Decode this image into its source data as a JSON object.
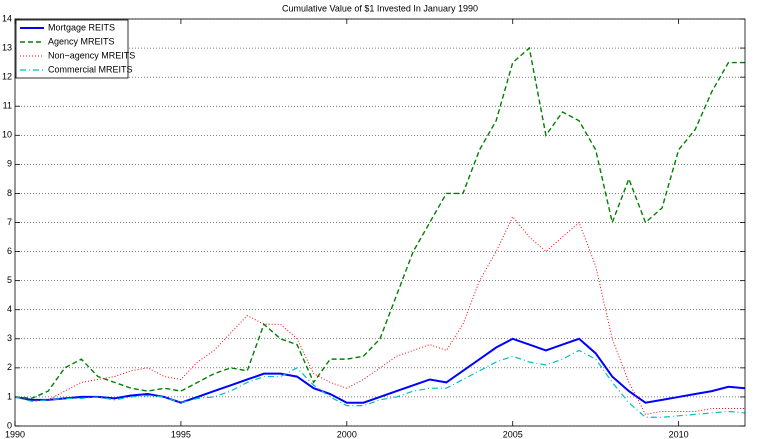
{
  "chart_data": {
    "type": "line",
    "title": "Cumulative Value of $1 Invested In January 1990",
    "x": [
      1990,
      1990.5,
      1991,
      1991.5,
      1992,
      1992.5,
      1993,
      1993.5,
      1994,
      1994.5,
      1995,
      1995.5,
      1996,
      1996.5,
      1997,
      1997.5,
      1998,
      1998.5,
      1999,
      1999.5,
      2000,
      2000.5,
      2001,
      2001.5,
      2002,
      2002.5,
      2003,
      2003.5,
      2004,
      2004.5,
      2005,
      2005.5,
      2006,
      2006.5,
      2007,
      2007.5,
      2008,
      2008.5,
      2009,
      2009.5,
      2010,
      2010.5,
      2011,
      2011.5,
      2012
    ],
    "series": [
      {
        "name": "Mortgage REITS",
        "color": "#0000ff",
        "style": "solid",
        "values": [
          1.0,
          0.9,
          0.9,
          0.95,
          1.0,
          1.0,
          0.95,
          1.05,
          1.1,
          1.0,
          0.8,
          1.0,
          1.2,
          1.4,
          1.6,
          1.8,
          1.8,
          1.7,
          1.3,
          1.1,
          0.8,
          0.8,
          1.0,
          1.2,
          1.4,
          1.6,
          1.5,
          1.9,
          2.3,
          2.7,
          3.0,
          2.8,
          2.6,
          2.8,
          3.0,
          2.5,
          1.7,
          1.2,
          0.8,
          0.9,
          1.0,
          1.1,
          1.2,
          1.35,
          1.3
        ]
      },
      {
        "name": "Agency MREITS",
        "color": "#008000",
        "style": "dashed",
        "values": [
          1.0,
          0.95,
          1.2,
          2.0,
          2.3,
          1.7,
          1.5,
          1.3,
          1.2,
          1.3,
          1.2,
          1.5,
          1.8,
          2.0,
          1.9,
          3.5,
          3.0,
          2.8,
          1.5,
          2.3,
          2.3,
          2.4,
          3.0,
          4.5,
          6.0,
          7.0,
          8.0,
          8.0,
          9.5,
          10.5,
          12.5,
          13.0,
          10.0,
          10.8,
          10.5,
          9.5,
          7.0,
          8.5,
          7.0,
          7.5,
          9.5,
          10.2,
          11.5,
          12.5,
          12.5
        ]
      },
      {
        "name": "Non−agency MREITS",
        "color": "#ff0000",
        "style": "dotted",
        "values": [
          1.0,
          0.85,
          0.9,
          1.2,
          1.5,
          1.6,
          1.7,
          1.9,
          2.0,
          1.7,
          1.6,
          2.2,
          2.6,
          3.2,
          3.8,
          3.5,
          3.5,
          3.0,
          1.8,
          1.5,
          1.3,
          1.6,
          2.0,
          2.4,
          2.6,
          2.8,
          2.6,
          3.5,
          5.0,
          6.0,
          7.2,
          6.5,
          6.0,
          6.5,
          7.0,
          5.5,
          3.0,
          1.5,
          0.4,
          0.5,
          0.5,
          0.5,
          0.6,
          0.6,
          0.6
        ]
      },
      {
        "name": "Commercial MREITS",
        "color": "#00bfbf",
        "style": "dashdot",
        "values": [
          1.0,
          0.85,
          0.9,
          0.95,
          0.95,
          1.0,
          0.9,
          1.0,
          1.05,
          1.0,
          0.8,
          0.95,
          1.0,
          1.2,
          1.5,
          1.7,
          1.7,
          2.0,
          1.4,
          1.0,
          0.7,
          0.7,
          0.9,
          1.0,
          1.2,
          1.3,
          1.3,
          1.6,
          1.9,
          2.2,
          2.4,
          2.2,
          2.1,
          2.3,
          2.6,
          2.3,
          1.5,
          0.8,
          0.3,
          0.3,
          0.35,
          0.4,
          0.45,
          0.5,
          0.45
        ]
      }
    ],
    "xlim": [
      1990,
      2012
    ],
    "xticks": [
      1990,
      1995,
      2000,
      2005,
      2010
    ],
    "ylim": [
      0,
      14
    ],
    "yticks": [
      0,
      1,
      2,
      3,
      4,
      5,
      6,
      7,
      8,
      9,
      10,
      11,
      12,
      13,
      14
    ],
    "grid": true,
    "legend": "upper left"
  }
}
